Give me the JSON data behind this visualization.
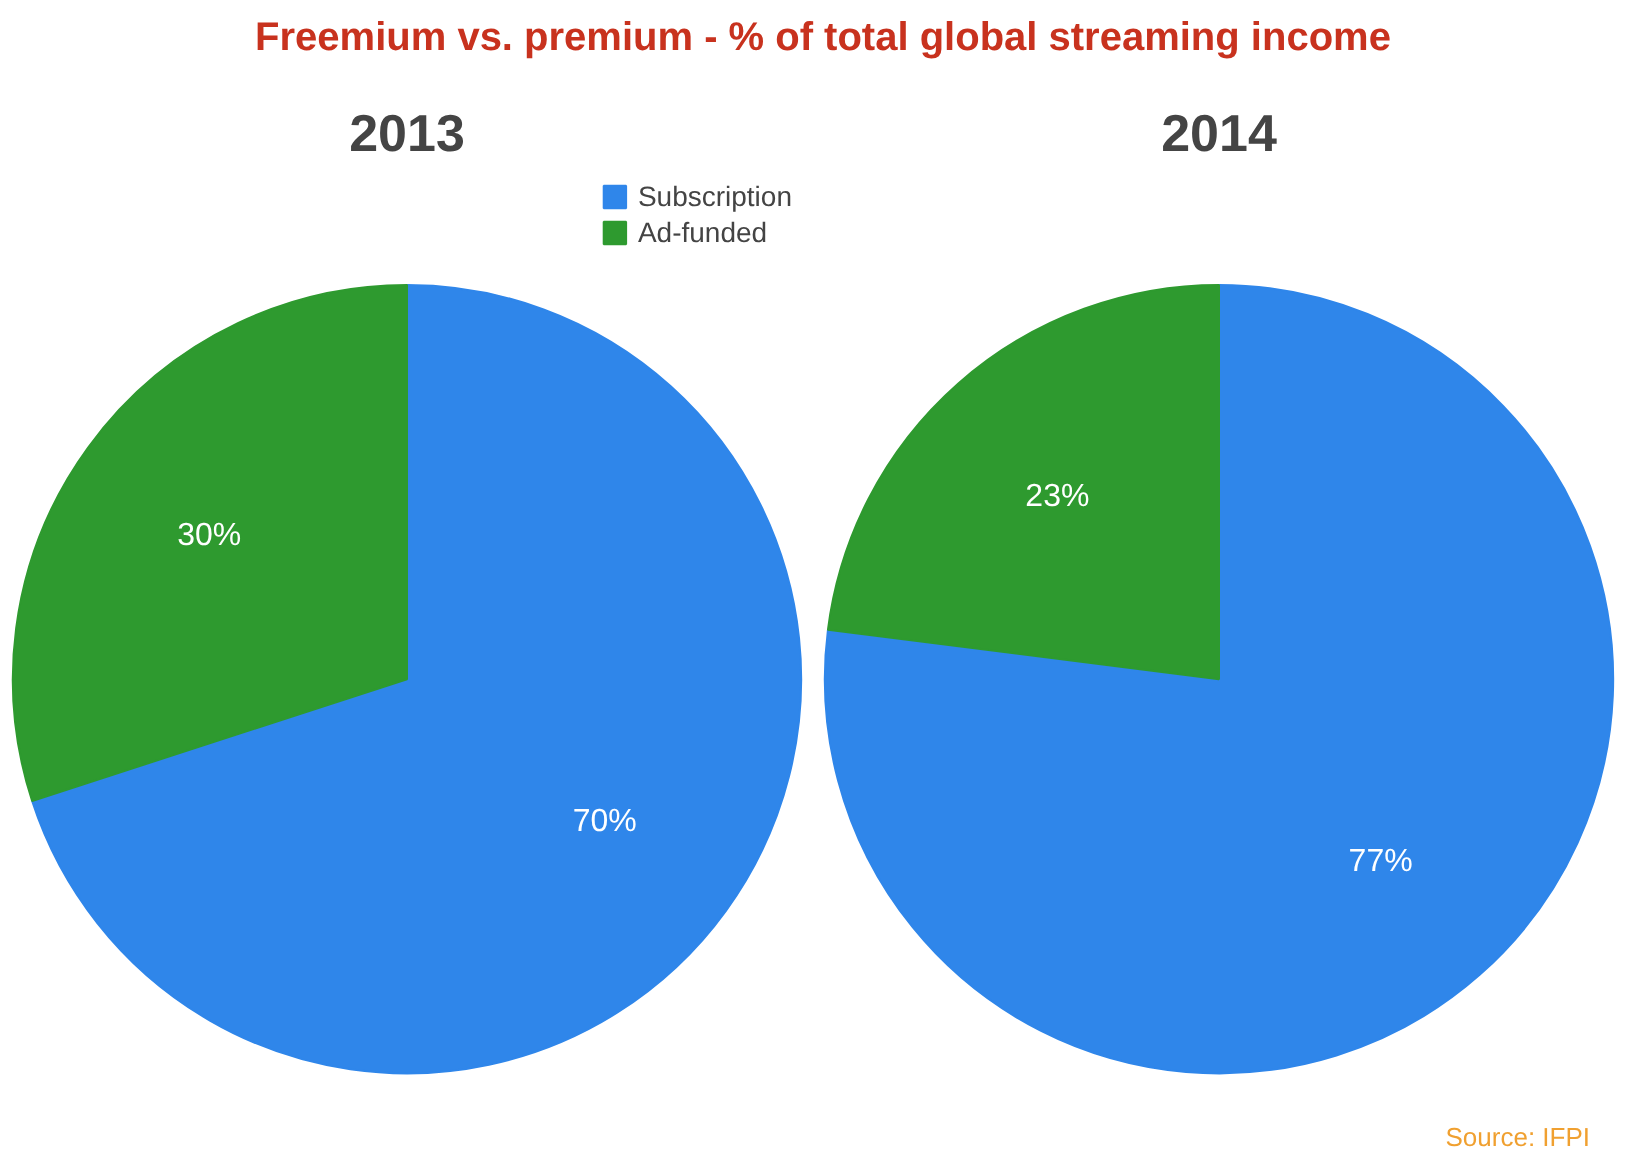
{
  "chart_data": [
    {
      "type": "pie",
      "title": "Freemium vs. premium - % of total global streaming income",
      "subtitle": "2013",
      "categories": [
        "Subscription",
        "Ad-funded"
      ],
      "values": [
        70,
        30
      ],
      "colors": [
        "#2f86ea",
        "#2e9a2f"
      ],
      "value_labels": [
        "70%",
        "30%"
      ],
      "legend": "top right"
    },
    {
      "type": "pie",
      "subtitle": "2014",
      "categories": [
        null,
        null
      ],
      "values": [
        77,
        23
      ],
      "colors": [
        "#2f86ea",
        "#2e9a2f"
      ],
      "value_labels": [
        "77%",
        "23%"
      ],
      "annotations": [
        "Source: IFPI"
      ]
    }
  ]
}
